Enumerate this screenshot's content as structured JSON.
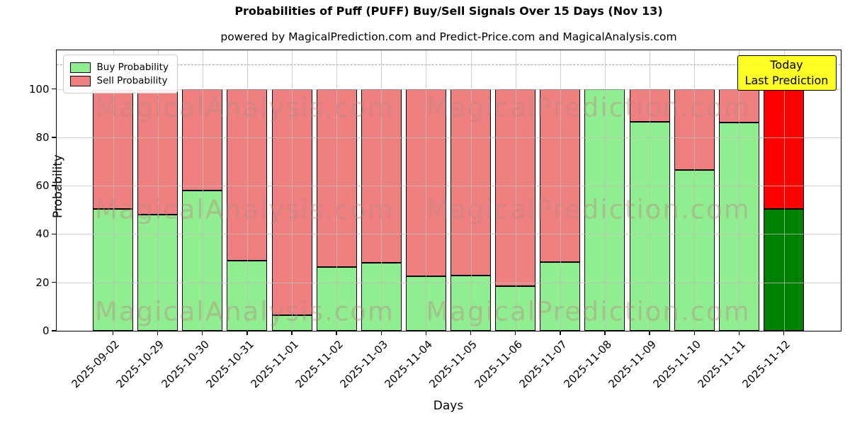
{
  "title": "Probabilities of Puff (PUFF) Buy/Sell Signals Over 15 Days (Nov 13)",
  "subtitle": "powered by MagicalPrediction.com and Predict-Price.com and MagicalAnalysis.com",
  "colors": {
    "buy": "#90EE90",
    "sell": "#F08080",
    "today_buy": "#008000",
    "today_sell": "#FF0000",
    "grid": "#bdbdbd",
    "dashed_line": "#a3a3a3",
    "today_box_bg": "rgba(255,255,0,0.85)",
    "watermark": "rgba(187,134,134,0.42)"
  },
  "legend": {
    "items": [
      {
        "label": "Buy Probability",
        "color_key": "buy"
      },
      {
        "label": "Sell Probability",
        "color_key": "sell"
      }
    ]
  },
  "annotation": {
    "line1": "Today",
    "line2": "Last Prediction"
  },
  "watermarks": {
    "left": "MagicalAnalysis.com",
    "right": "MagicalPrediction.com"
  },
  "chart_data": {
    "type": "bar",
    "stacked": true,
    "title": "Probabilities of Puff (PUFF) Buy/Sell Signals Over 15 Days (Nov 13)",
    "xlabel": "Days",
    "ylabel": "Probability",
    "yticks": [
      0,
      20,
      40,
      60,
      80,
      100
    ],
    "ylim": [
      0,
      116
    ],
    "grid": true,
    "dashed_line_y": 110,
    "legend_position": "upper-left",
    "categories": [
      "2025-09-02",
      "2025-10-29",
      "2025-10-30",
      "2025-10-31",
      "2025-11-01",
      "2025-11-02",
      "2025-11-03",
      "2025-11-04",
      "2025-11-05",
      "2025-11-06",
      "2025-11-07",
      "2025-11-08",
      "2025-11-09",
      "2025-11-10",
      "2025-11-11",
      "2025-11-12"
    ],
    "series": [
      {
        "name": "Buy Probability",
        "values": [
          50.5,
          48,
          58,
          29,
          6.5,
          26.5,
          28,
          22.5,
          23,
          18.5,
          28.5,
          100,
          86.5,
          66.5,
          86,
          50.5
        ]
      },
      {
        "name": "Sell Probability",
        "values": [
          49.5,
          52,
          42,
          71,
          93.5,
          73.5,
          72,
          77.5,
          77,
          81.5,
          71.5,
          0,
          13.5,
          33.5,
          14,
          49.5
        ]
      }
    ],
    "today_index": 15
  }
}
